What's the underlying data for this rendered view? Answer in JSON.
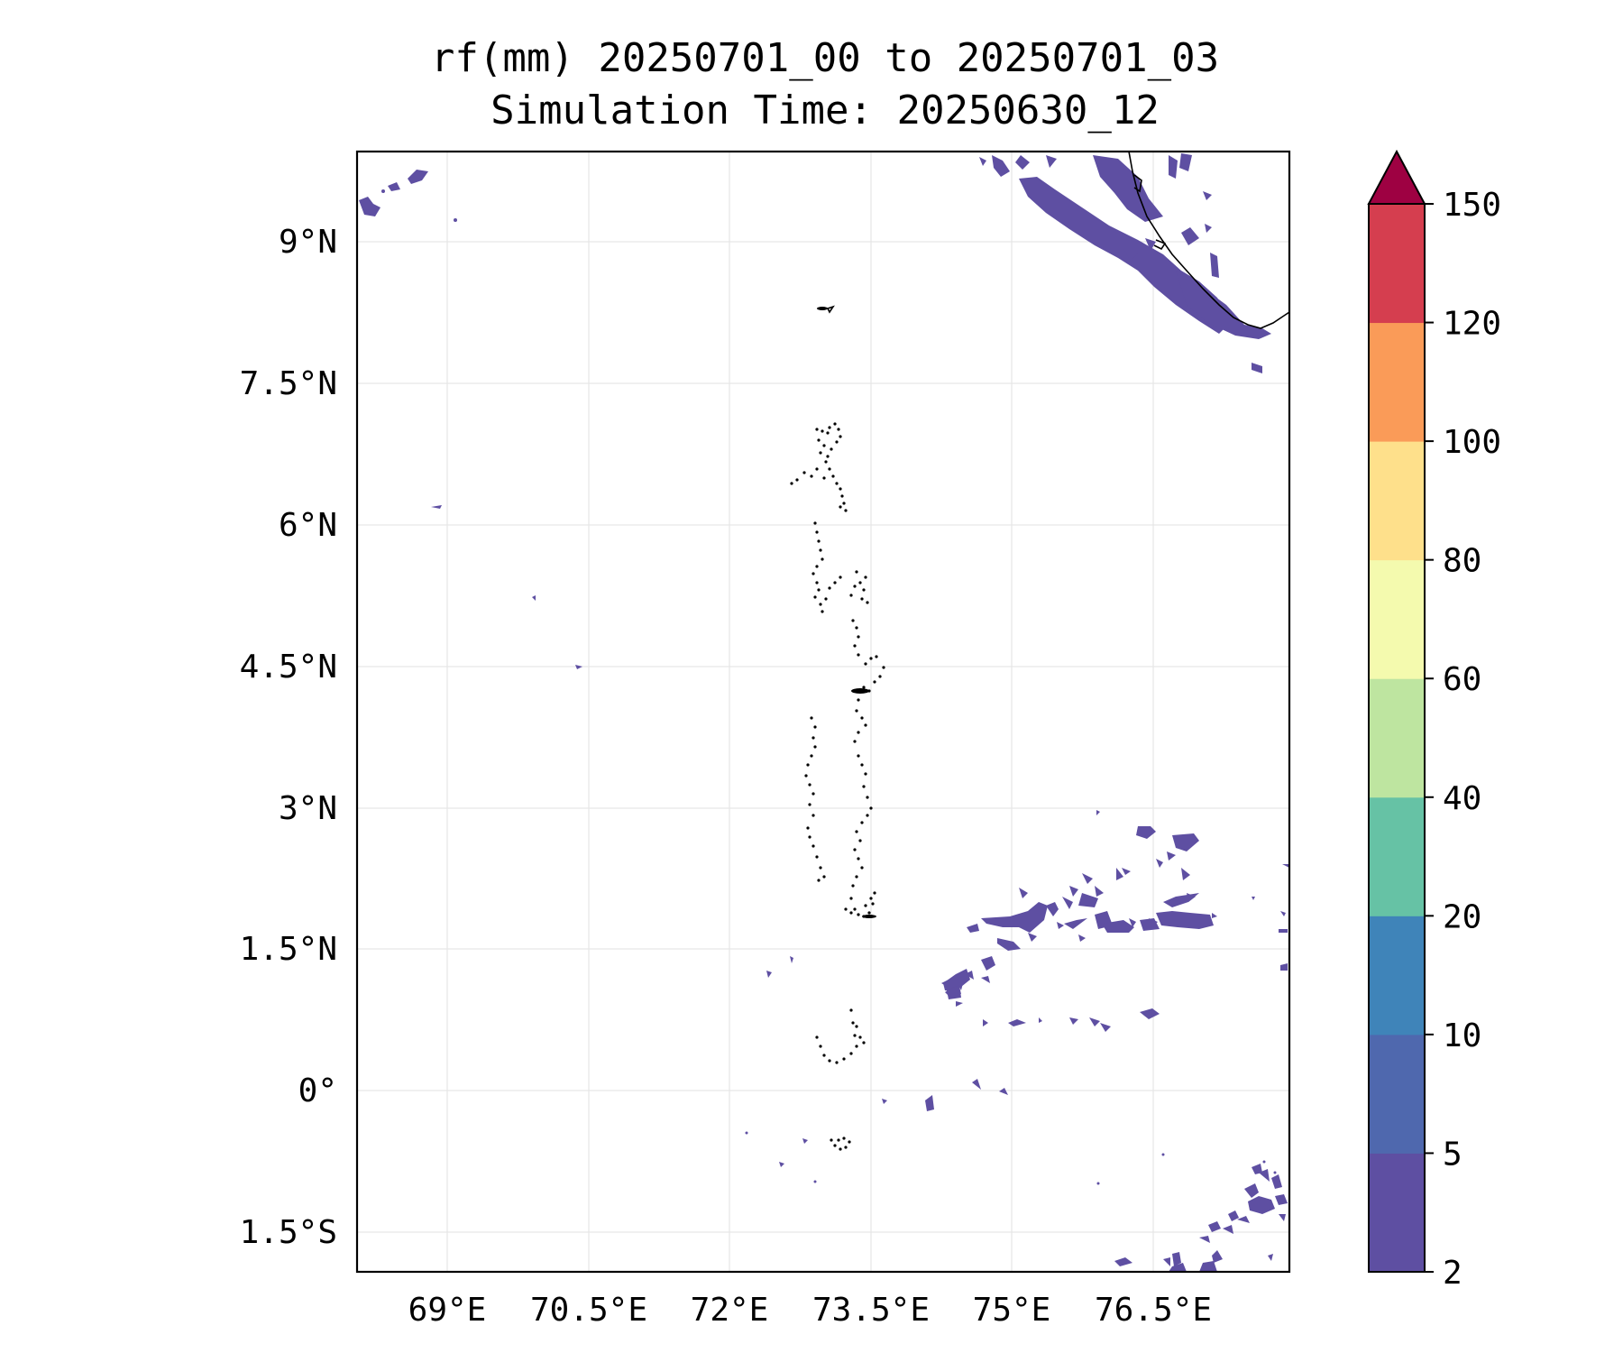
{
  "title": {
    "line1": "rf(mm) 20250701_00 to 20250701_03",
    "line2": "Simulation Time: 20250630_12"
  },
  "map": {
    "lon_ticks": [
      "69°E",
      "70.5°E",
      "72°E",
      "73.5°E",
      "75°E",
      "76.5°E"
    ],
    "lat_ticks": [
      "9°N",
      "7.5°N",
      "6°N",
      "4.5°N",
      "3°N",
      "1.5°N",
      "0°",
      "1.5°S"
    ],
    "lon_range": [
      68.05,
      77.95
    ],
    "lat_range": [
      -2.0,
      9.85
    ],
    "grid": true,
    "coastline": "India south-west coast, Lakshadweep, Maldives atolls",
    "rain_fill_color": "#5e4fa2"
  },
  "colorbar": {
    "levels": [
      "2",
      "5",
      "10",
      "20",
      "40",
      "60",
      "80",
      "100",
      "120",
      "150"
    ],
    "colors": [
      "#5e4fa2",
      "#4f68ae",
      "#3f84b9",
      "#66c2a5",
      "#bee5a0",
      "#f4faae",
      "#fee08b",
      "#fa9b58",
      "#d53e4f"
    ],
    "extend_color": "#9e0142",
    "extend": "max"
  }
}
